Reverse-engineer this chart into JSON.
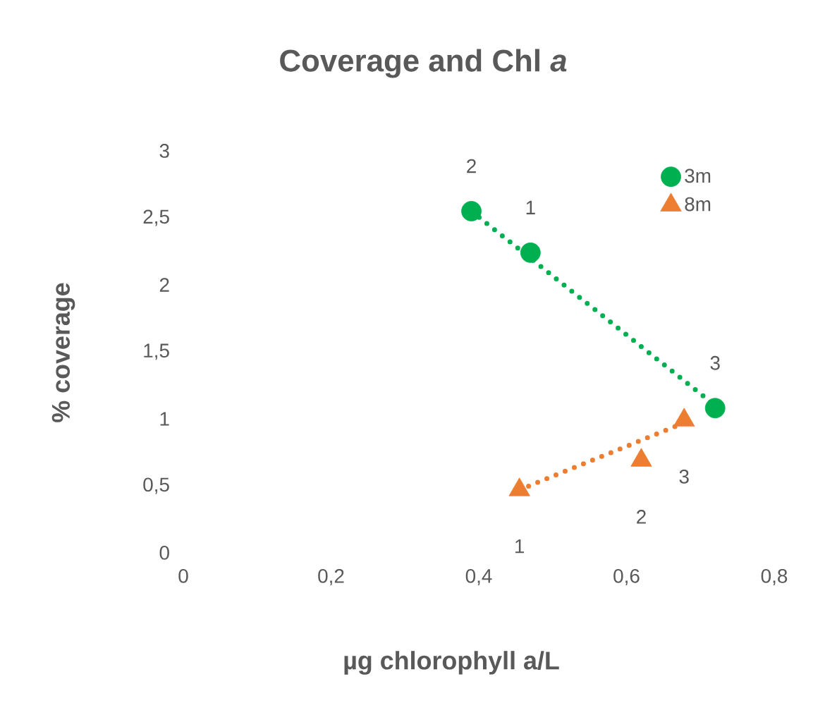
{
  "chart_data": {
    "type": "scatter",
    "title": "Coverage and Chl *a*",
    "xlabel": "µg chlorophyll a/L",
    "ylabel": "% coverage",
    "xlim": [
      0,
      0.8
    ],
    "ylim": [
      0,
      3
    ],
    "xticks": [
      0,
      {
        "value": 0.2,
        "label": "0,2"
      },
      {
        "value": 0.4,
        "label": "0,4"
      },
      {
        "value": 0.6,
        "label": "0,6"
      },
      {
        "value": 0.8,
        "label": "0,8"
      }
    ],
    "yticks": [
      0,
      {
        "value": 0.5,
        "label": "0,5"
      },
      1,
      {
        "value": 1.5,
        "label": "1,5"
      },
      2,
      {
        "value": 2.5,
        "label": "2,5"
      },
      3
    ],
    "legend": "top right",
    "grid": false,
    "series": [
      {
        "name": "3m",
        "marker": "circle",
        "color": "#00b050",
        "x": [
          0.39,
          0.47,
          0.72
        ],
        "values": [
          2.55,
          2.24,
          1.08
        ]
      },
      {
        "name": "8m",
        "marker": "triangle",
        "color": "#ed7d31",
        "x": [
          0.455,
          0.62,
          0.678
        ],
        "values": [
          0.47,
          0.69,
          0.99
        ]
      },
      {
        "type": "line",
        "line_style": "dotted",
        "color": "#00b050",
        "x": [
          0.39,
          0.72
        ],
        "values": [
          2.55,
          1.1
        ]
      },
      {
        "type": "line",
        "line_style": "dotted",
        "color": "#ed7d31",
        "x": [
          0.455,
          0.678
        ],
        "values": [
          0.47,
          0.97
        ]
      }
    ],
    "annotations": [
      {
        "text": "2",
        "x": 0.39,
        "y": 2.55
      },
      {
        "text": "1",
        "x": 0.47,
        "y": 2.24
      },
      {
        "text": "3",
        "x": 0.72,
        "y": 1.08
      },
      {
        "text": "1",
        "x": 0.455,
        "y": 0.47
      },
      {
        "text": "2",
        "x": 0.62,
        "y": 0.69
      },
      {
        "text": "3",
        "x": 0.678,
        "y": 0.99
      }
    ]
  }
}
